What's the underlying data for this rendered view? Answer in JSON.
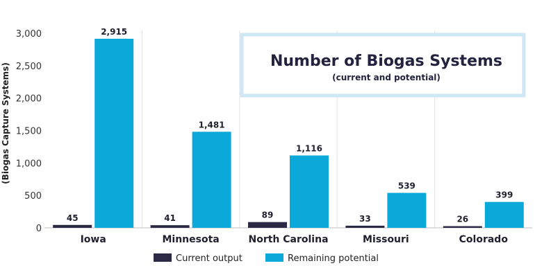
{
  "chart_data": {
    "type": "bar",
    "title": "Number of Biogas Systems",
    "subtitle": "(current and potential)",
    "ylabel": "(Biogas Capture Systems)",
    "xlabel": "",
    "ylim": [
      0,
      3000
    ],
    "yticks": [
      0,
      500,
      1000,
      1500,
      2000,
      2500,
      3000
    ],
    "ytick_labels": [
      "0",
      "500",
      "1,000",
      "1,500",
      "2,000",
      "2,500",
      "3,000"
    ],
    "grid": "vertical separators between categories",
    "legend_position": "bottom-center",
    "categories": [
      "Iowa",
      "Minnesota",
      "North Carolina",
      "Missouri",
      "Colorado"
    ],
    "series": [
      {
        "name": "Current output",
        "color": "#2a2a44",
        "values": [
          45,
          41,
          89,
          33,
          26
        ],
        "labels": [
          "45",
          "41",
          "89",
          "33",
          "26"
        ]
      },
      {
        "name": "Remaining potential",
        "color": "#0aa9d9",
        "values": [
          2915,
          1481,
          1116,
          539,
          399
        ],
        "labels": [
          "2,915",
          "1,481",
          "1,116",
          "539",
          "399"
        ]
      }
    ],
    "title_box_color": "#cfe6f5"
  }
}
